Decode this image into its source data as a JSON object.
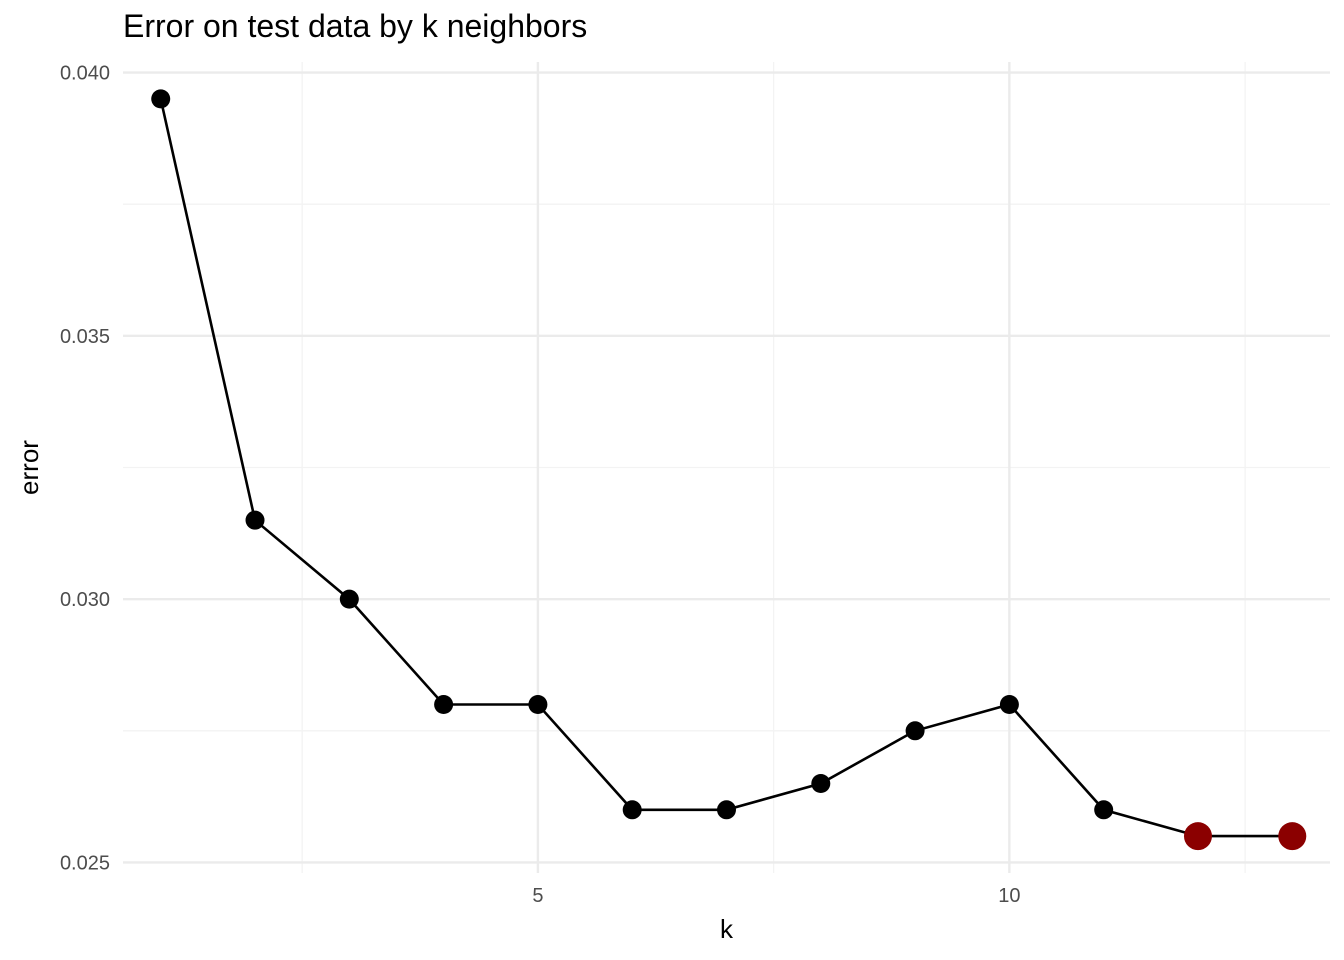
{
  "chart_data": {
    "type": "line",
    "title": "Error on test data by k neighbors",
    "xlabel": "k",
    "ylabel": "error",
    "xlim": [
      0.6,
      13.4
    ],
    "ylim": [
      0.0248,
      0.0402
    ],
    "x_ticks": [
      5,
      10
    ],
    "x_tick_labels": [
      "5",
      "10"
    ],
    "x_minor_ticks": [
      2.5,
      7.5,
      12.5
    ],
    "y_ticks": [
      0.025,
      0.03,
      0.035,
      0.04
    ],
    "y_tick_labels": [
      "0.025",
      "0.030",
      "0.035",
      "0.040"
    ],
    "y_minor_ticks": [
      0.0275,
      0.0325,
      0.0375
    ],
    "grid": true,
    "series": [
      {
        "x": [
          1,
          2,
          3,
          4,
          5,
          6,
          7,
          8,
          9,
          10,
          11,
          12,
          13
        ],
        "y": [
          0.0395,
          0.0315,
          0.03,
          0.028,
          0.028,
          0.026,
          0.026,
          0.0265,
          0.0275,
          0.028,
          0.026,
          0.0255,
          0.0255
        ],
        "highlight": [
          false,
          false,
          false,
          false,
          false,
          false,
          false,
          false,
          false,
          false,
          false,
          true,
          true
        ]
      }
    ],
    "colors": {
      "line": "#000000",
      "point": "#000000",
      "highlight_point": "#8b0000",
      "grid_major": "#ebebeb",
      "grid_minor": "#f3f3f3"
    }
  }
}
